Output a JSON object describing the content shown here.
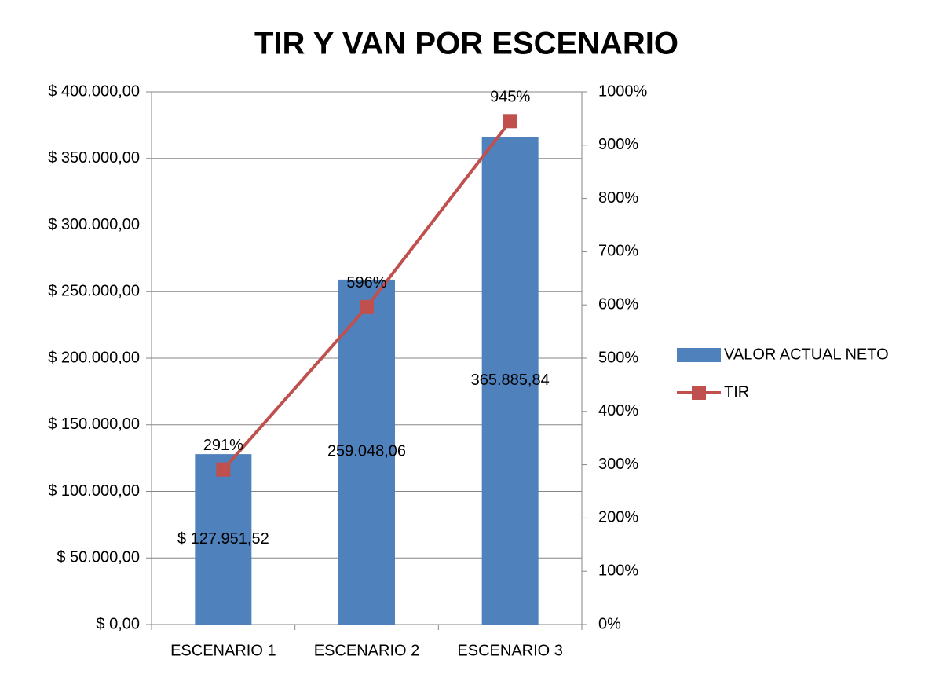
{
  "chart_data": {
    "type": "bar",
    "title": "TIR Y VAN POR ESCENARIO",
    "categories": [
      "ESCENARIO 1",
      "ESCENARIO 2",
      "ESCENARIO 3"
    ],
    "series": [
      {
        "name": "VALOR ACTUAL NETO",
        "type": "bar",
        "color": "#4f81bd",
        "values": [
          127951.52,
          259048.06,
          365885.84
        ],
        "value_labels": [
          "$ 127.951,52",
          "259.048,06",
          "365.885,84"
        ]
      },
      {
        "name": "TIR",
        "type": "line",
        "axis": "y2",
        "color": "#c0504d",
        "values": [
          291,
          596,
          945
        ],
        "value_labels": [
          "291%",
          "596%",
          "945%"
        ]
      }
    ],
    "ylim": [
      0,
      400000
    ],
    "yticks": [
      {
        "value": 0,
        "label": "$ 0,00"
      },
      {
        "value": 50000,
        "label": "$ 50.000,00"
      },
      {
        "value": 100000,
        "label": "$ 100.000,00"
      },
      {
        "value": 150000,
        "label": "$ 150.000,00"
      },
      {
        "value": 200000,
        "label": "$ 200.000,00"
      },
      {
        "value": 250000,
        "label": "$ 250.000,00"
      },
      {
        "value": 300000,
        "label": "$ 300.000,00"
      },
      {
        "value": 350000,
        "label": "$ 350.000,00"
      },
      {
        "value": 400000,
        "label": "$ 400.000,00"
      }
    ],
    "y2lim": [
      0,
      1000
    ],
    "y2ticks": [
      {
        "value": 0,
        "label": "0%"
      },
      {
        "value": 100,
        "label": "100%"
      },
      {
        "value": 200,
        "label": "200%"
      },
      {
        "value": 300,
        "label": "300%"
      },
      {
        "value": 400,
        "label": "400%"
      },
      {
        "value": 500,
        "label": "500%"
      },
      {
        "value": 600,
        "label": "600%"
      },
      {
        "value": 700,
        "label": "700%"
      },
      {
        "value": 800,
        "label": "800%"
      },
      {
        "value": 900,
        "label": "900%"
      },
      {
        "value": 1000,
        "label": "1000%"
      }
    ],
    "grid": true,
    "legend": "right"
  }
}
